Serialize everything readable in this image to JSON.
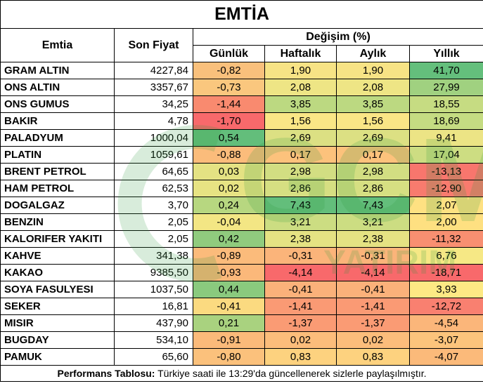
{
  "title": "EMTİA",
  "headers": {
    "emtia": "Emtia",
    "son_fiyat": "Son Fiyat",
    "degisim": "Değişim (%)",
    "gunluk": "Günlük",
    "haftalik": "Haftalık",
    "aylik": "Aylık",
    "yillik": "Yıllık"
  },
  "rows": [
    {
      "name": "GRAM ALTIN",
      "price": "4227,84",
      "d": "-0,82",
      "w": "1,90",
      "m": "1,90",
      "y": "41,70",
      "cd": "#f9c07c",
      "cw": "#f7e385",
      "cm": "#f7e385",
      "cy": "#64bf7c"
    },
    {
      "name": "ONS ALTIN",
      "price": "3357,67",
      "d": "-0,73",
      "w": "2,08",
      "m": "2,08",
      "y": "27,99",
      "cd": "#fac77e",
      "cw": "#eee585",
      "cm": "#eee585",
      "cy": "#a0d180"
    },
    {
      "name": "ONS GUMUS",
      "price": "34,25",
      "d": "-1,44",
      "w": "3,85",
      "m": "3,85",
      "y": "18,55",
      "cd": "#f98a6f",
      "cw": "#bcd981",
      "cm": "#bcd981",
      "cy": "#c6dc82"
    },
    {
      "name": "BAKIR",
      "price": "4,78",
      "d": "-1,70",
      "w": "1,56",
      "m": "1,56",
      "y": "18,69",
      "cd": "#f8696b",
      "cw": "#fae686",
      "cm": "#fae686",
      "cy": "#c5dc82"
    },
    {
      "name": "PALADYUM",
      "price": "1000,04",
      "d": "0,54",
      "w": "2,69",
      "m": "2,69",
      "y": "9,41",
      "cd": "#63be7b",
      "cw": "#dce083",
      "cm": "#dce083",
      "cy": "#ece485"
    },
    {
      "name": "PLATIN",
      "price": "1059,61",
      "d": "-0,88",
      "w": "0,17",
      "m": "0,17",
      "y": "17,04",
      "cd": "#fbbc7b",
      "cw": "#fcc27c",
      "cm": "#fcc27c",
      "cy": "#cddd82"
    },
    {
      "name": "BRENT PETROL",
      "price": "64,65",
      "d": "0,03",
      "w": "2,98",
      "m": "2,98",
      "y": "-13,13",
      "cd": "#e4e283",
      "cw": "#d2de82",
      "cm": "#d2de82",
      "cy": "#f8766d"
    },
    {
      "name": "HAM PETROL",
      "price": "62,53",
      "d": "0,02",
      "w": "2,86",
      "m": "2,86",
      "y": "-12,90",
      "cd": "#e7e383",
      "cw": "#d6df82",
      "cm": "#d6df82",
      "cy": "#f87b6e"
    },
    {
      "name": "DOGALGAZ",
      "price": "3,70",
      "d": "0,24",
      "w": "7,43",
      "m": "7,43",
      "y": "2,07",
      "cd": "#b7d780",
      "cw": "#63be7b",
      "cm": "#63be7b",
      "cy": "#fee182"
    },
    {
      "name": "BENZIN",
      "price": "2,05",
      "d": "-0,04",
      "w": "3,21",
      "m": "3,21",
      "y": "2,00",
      "cd": "#f3e684",
      "cw": "#ccdd82",
      "cm": "#ccdd82",
      "cy": "#fee081"
    },
    {
      "name": "KALORIFER YAKITI",
      "price": "2,05",
      "d": "0,42",
      "w": "2,38",
      "m": "2,38",
      "y": "-11,32",
      "cd": "#90cb7e",
      "cw": "#e5e283",
      "cm": "#e5e283",
      "cy": "#f88f71"
    },
    {
      "name": "KAHVE",
      "price": "341,38",
      "d": "-0,89",
      "w": "-0,31",
      "m": "-0,31",
      "y": "6,76",
      "cd": "#fbbb7b",
      "cw": "#fbb47a",
      "cm": "#fbb47a",
      "cy": "#f6e885"
    },
    {
      "name": "KAKAO",
      "price": "9385,50",
      "d": "-0,93",
      "w": "-4,14",
      "m": "-4,14",
      "y": "-18,71",
      "cd": "#fbb87a",
      "cw": "#f8696b",
      "cm": "#f8696b",
      "cy": "#f8696b"
    },
    {
      "name": "SOYA FASULYESI",
      "price": "1037,50",
      "d": "0,44",
      "w": "-0,41",
      "m": "-0,41",
      "y": "3,93",
      "cd": "#8aca7e",
      "cw": "#fbb17a",
      "cm": "#fbb17a",
      "cy": "#fde984"
    },
    {
      "name": "SEKER",
      "price": "16,81",
      "d": "-0,41",
      "w": "-1,41",
      "m": "-1,41",
      "y": "-12,72",
      "cd": "#fbda80",
      "cw": "#fa9a74",
      "cm": "#fa9a74",
      "cy": "#f98070"
    },
    {
      "name": "MISIR",
      "price": "437,90",
      "d": "0,21",
      "w": "-1,37",
      "m": "-1,37",
      "y": "-4,54",
      "cd": "#a9d27f",
      "cw": "#fa9b74",
      "cm": "#fa9b74",
      "cy": "#fbb67a"
    },
    {
      "name": "BUGDAY",
      "price": "534,10",
      "d": "-0,91",
      "w": "0,02",
      "m": "0,02",
      "y": "-3,07",
      "cd": "#fbba7a",
      "cw": "#fcbd7b",
      "cm": "#fcbd7b",
      "cy": "#fcc47c"
    },
    {
      "name": "PAMUK",
      "price": "65,60",
      "d": "-0,80",
      "w": "0,83",
      "m": "0,83",
      "y": "-4,07",
      "cd": "#fbc17c",
      "cw": "#fdd27f",
      "cm": "#fdd27f",
      "cy": "#fbba7a"
    }
  ],
  "footer": {
    "bold": "Performans Tablosu:",
    "text": " Türkiye saati ile 13:29'da güncellenerek sizlerle paylaşılmıştır."
  },
  "watermark": {
    "text": "GCM",
    "subtext": "YATIRIM"
  }
}
